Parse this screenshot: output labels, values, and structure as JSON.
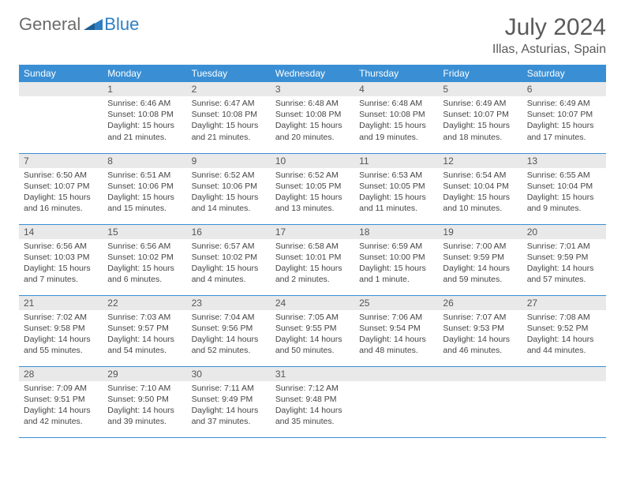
{
  "logo": {
    "general": "General",
    "blue": "Blue"
  },
  "title": "July 2024",
  "location": "Illas, Asturias, Spain",
  "weekdays": [
    "Sunday",
    "Monday",
    "Tuesday",
    "Wednesday",
    "Thursday",
    "Friday",
    "Saturday"
  ],
  "colors": {
    "header_bg": "#3a8fd4",
    "header_text": "#ffffff",
    "daynum_bg": "#e9e9e9",
    "row_border": "#3a8fd4",
    "logo_general": "#6b6b6b",
    "logo_blue": "#2f7fc2",
    "title_color": "#5a5a5a",
    "body_text": "#444444"
  },
  "weeks": [
    [
      {
        "empty": true
      },
      {
        "day": "1",
        "sunrise": "Sunrise: 6:46 AM",
        "sunset": "Sunset: 10:08 PM",
        "daylight": "Daylight: 15 hours and 21 minutes."
      },
      {
        "day": "2",
        "sunrise": "Sunrise: 6:47 AM",
        "sunset": "Sunset: 10:08 PM",
        "daylight": "Daylight: 15 hours and 21 minutes."
      },
      {
        "day": "3",
        "sunrise": "Sunrise: 6:48 AM",
        "sunset": "Sunset: 10:08 PM",
        "daylight": "Daylight: 15 hours and 20 minutes."
      },
      {
        "day": "4",
        "sunrise": "Sunrise: 6:48 AM",
        "sunset": "Sunset: 10:08 PM",
        "daylight": "Daylight: 15 hours and 19 minutes."
      },
      {
        "day": "5",
        "sunrise": "Sunrise: 6:49 AM",
        "sunset": "Sunset: 10:07 PM",
        "daylight": "Daylight: 15 hours and 18 minutes."
      },
      {
        "day": "6",
        "sunrise": "Sunrise: 6:49 AM",
        "sunset": "Sunset: 10:07 PM",
        "daylight": "Daylight: 15 hours and 17 minutes."
      }
    ],
    [
      {
        "day": "7",
        "sunrise": "Sunrise: 6:50 AM",
        "sunset": "Sunset: 10:07 PM",
        "daylight": "Daylight: 15 hours and 16 minutes."
      },
      {
        "day": "8",
        "sunrise": "Sunrise: 6:51 AM",
        "sunset": "Sunset: 10:06 PM",
        "daylight": "Daylight: 15 hours and 15 minutes."
      },
      {
        "day": "9",
        "sunrise": "Sunrise: 6:52 AM",
        "sunset": "Sunset: 10:06 PM",
        "daylight": "Daylight: 15 hours and 14 minutes."
      },
      {
        "day": "10",
        "sunrise": "Sunrise: 6:52 AM",
        "sunset": "Sunset: 10:05 PM",
        "daylight": "Daylight: 15 hours and 13 minutes."
      },
      {
        "day": "11",
        "sunrise": "Sunrise: 6:53 AM",
        "sunset": "Sunset: 10:05 PM",
        "daylight": "Daylight: 15 hours and 11 minutes."
      },
      {
        "day": "12",
        "sunrise": "Sunrise: 6:54 AM",
        "sunset": "Sunset: 10:04 PM",
        "daylight": "Daylight: 15 hours and 10 minutes."
      },
      {
        "day": "13",
        "sunrise": "Sunrise: 6:55 AM",
        "sunset": "Sunset: 10:04 PM",
        "daylight": "Daylight: 15 hours and 9 minutes."
      }
    ],
    [
      {
        "day": "14",
        "sunrise": "Sunrise: 6:56 AM",
        "sunset": "Sunset: 10:03 PM",
        "daylight": "Daylight: 15 hours and 7 minutes."
      },
      {
        "day": "15",
        "sunrise": "Sunrise: 6:56 AM",
        "sunset": "Sunset: 10:02 PM",
        "daylight": "Daylight: 15 hours and 6 minutes."
      },
      {
        "day": "16",
        "sunrise": "Sunrise: 6:57 AM",
        "sunset": "Sunset: 10:02 PM",
        "daylight": "Daylight: 15 hours and 4 minutes."
      },
      {
        "day": "17",
        "sunrise": "Sunrise: 6:58 AM",
        "sunset": "Sunset: 10:01 PM",
        "daylight": "Daylight: 15 hours and 2 minutes."
      },
      {
        "day": "18",
        "sunrise": "Sunrise: 6:59 AM",
        "sunset": "Sunset: 10:00 PM",
        "daylight": "Daylight: 15 hours and 1 minute."
      },
      {
        "day": "19",
        "sunrise": "Sunrise: 7:00 AM",
        "sunset": "Sunset: 9:59 PM",
        "daylight": "Daylight: 14 hours and 59 minutes."
      },
      {
        "day": "20",
        "sunrise": "Sunrise: 7:01 AM",
        "sunset": "Sunset: 9:59 PM",
        "daylight": "Daylight: 14 hours and 57 minutes."
      }
    ],
    [
      {
        "day": "21",
        "sunrise": "Sunrise: 7:02 AM",
        "sunset": "Sunset: 9:58 PM",
        "daylight": "Daylight: 14 hours and 55 minutes."
      },
      {
        "day": "22",
        "sunrise": "Sunrise: 7:03 AM",
        "sunset": "Sunset: 9:57 PM",
        "daylight": "Daylight: 14 hours and 54 minutes."
      },
      {
        "day": "23",
        "sunrise": "Sunrise: 7:04 AM",
        "sunset": "Sunset: 9:56 PM",
        "daylight": "Daylight: 14 hours and 52 minutes."
      },
      {
        "day": "24",
        "sunrise": "Sunrise: 7:05 AM",
        "sunset": "Sunset: 9:55 PM",
        "daylight": "Daylight: 14 hours and 50 minutes."
      },
      {
        "day": "25",
        "sunrise": "Sunrise: 7:06 AM",
        "sunset": "Sunset: 9:54 PM",
        "daylight": "Daylight: 14 hours and 48 minutes."
      },
      {
        "day": "26",
        "sunrise": "Sunrise: 7:07 AM",
        "sunset": "Sunset: 9:53 PM",
        "daylight": "Daylight: 14 hours and 46 minutes."
      },
      {
        "day": "27",
        "sunrise": "Sunrise: 7:08 AM",
        "sunset": "Sunset: 9:52 PM",
        "daylight": "Daylight: 14 hours and 44 minutes."
      }
    ],
    [
      {
        "day": "28",
        "sunrise": "Sunrise: 7:09 AM",
        "sunset": "Sunset: 9:51 PM",
        "daylight": "Daylight: 14 hours and 42 minutes."
      },
      {
        "day": "29",
        "sunrise": "Sunrise: 7:10 AM",
        "sunset": "Sunset: 9:50 PM",
        "daylight": "Daylight: 14 hours and 39 minutes."
      },
      {
        "day": "30",
        "sunrise": "Sunrise: 7:11 AM",
        "sunset": "Sunset: 9:49 PM",
        "daylight": "Daylight: 14 hours and 37 minutes."
      },
      {
        "day": "31",
        "sunrise": "Sunrise: 7:12 AM",
        "sunset": "Sunset: 9:48 PM",
        "daylight": "Daylight: 14 hours and 35 minutes."
      },
      {
        "empty": true
      },
      {
        "empty": true
      },
      {
        "empty": true
      }
    ]
  ]
}
